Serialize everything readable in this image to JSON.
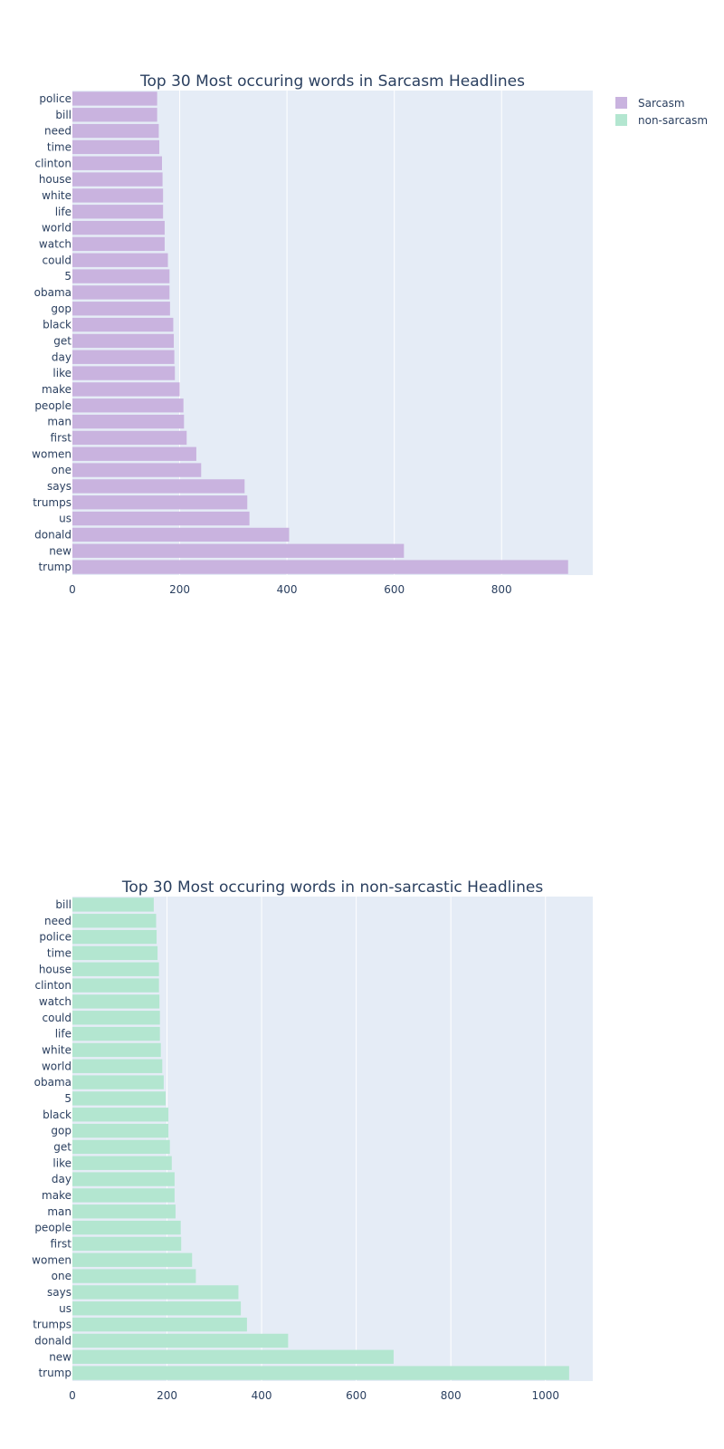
{
  "legend": {
    "items": [
      {
        "label": "Sarcasm",
        "color": "#c9b3df"
      },
      {
        "label": "non-sarcasm",
        "color": "#b3e6d0"
      }
    ]
  },
  "chart_data": [
    {
      "type": "bar",
      "orientation": "horizontal",
      "title": "Top 30 Most occuring words in Sarcasm Headlines",
      "series_name": "Sarcasm",
      "color": "#c9b3df",
      "xlim": [
        0,
        970
      ],
      "xticks": [
        0,
        200,
        400,
        600,
        800
      ],
      "xlabel": "",
      "ylabel": "",
      "categories": [
        "police",
        "bill",
        "need",
        "time",
        "clinton",
        "house",
        "white",
        "life",
        "world",
        "watch",
        "could",
        "5",
        "obama",
        "gop",
        "black",
        "get",
        "day",
        "like",
        "make",
        "people",
        "man",
        "first",
        "women",
        "one",
        "says",
        "trumps",
        "us",
        "donald",
        "new",
        "trump"
      ],
      "values": [
        158,
        158,
        161,
        162,
        167,
        168,
        169,
        169,
        172,
        172,
        178,
        181,
        181,
        182,
        188,
        189,
        190,
        191,
        200,
        207,
        208,
        213,
        231,
        240,
        321,
        326,
        330,
        404,
        618,
        924
      ]
    },
    {
      "type": "bar",
      "orientation": "horizontal",
      "title": "Top 30 Most occuring words in non-sarcastic Headlines",
      "series_name": "non-sarcasm",
      "color": "#b3e6d0",
      "xlim": [
        0,
        1100
      ],
      "xticks": [
        0,
        200,
        400,
        600,
        800,
        1000
      ],
      "xlabel": "",
      "ylabel": "",
      "categories": [
        "bill",
        "need",
        "police",
        "time",
        "house",
        "clinton",
        "watch",
        "could",
        "life",
        "white",
        "world",
        "obama",
        "5",
        "black",
        "gop",
        "get",
        "like",
        "day",
        "make",
        "man",
        "people",
        "first",
        "women",
        "one",
        "says",
        "us",
        "trumps",
        "donald",
        "new",
        "trump"
      ],
      "values": [
        172,
        177,
        178,
        180,
        183,
        183,
        184,
        185,
        185,
        187,
        190,
        193,
        197,
        203,
        203,
        206,
        210,
        216,
        216,
        218,
        229,
        230,
        253,
        261,
        351,
        356,
        369,
        456,
        679,
        1050
      ]
    }
  ]
}
